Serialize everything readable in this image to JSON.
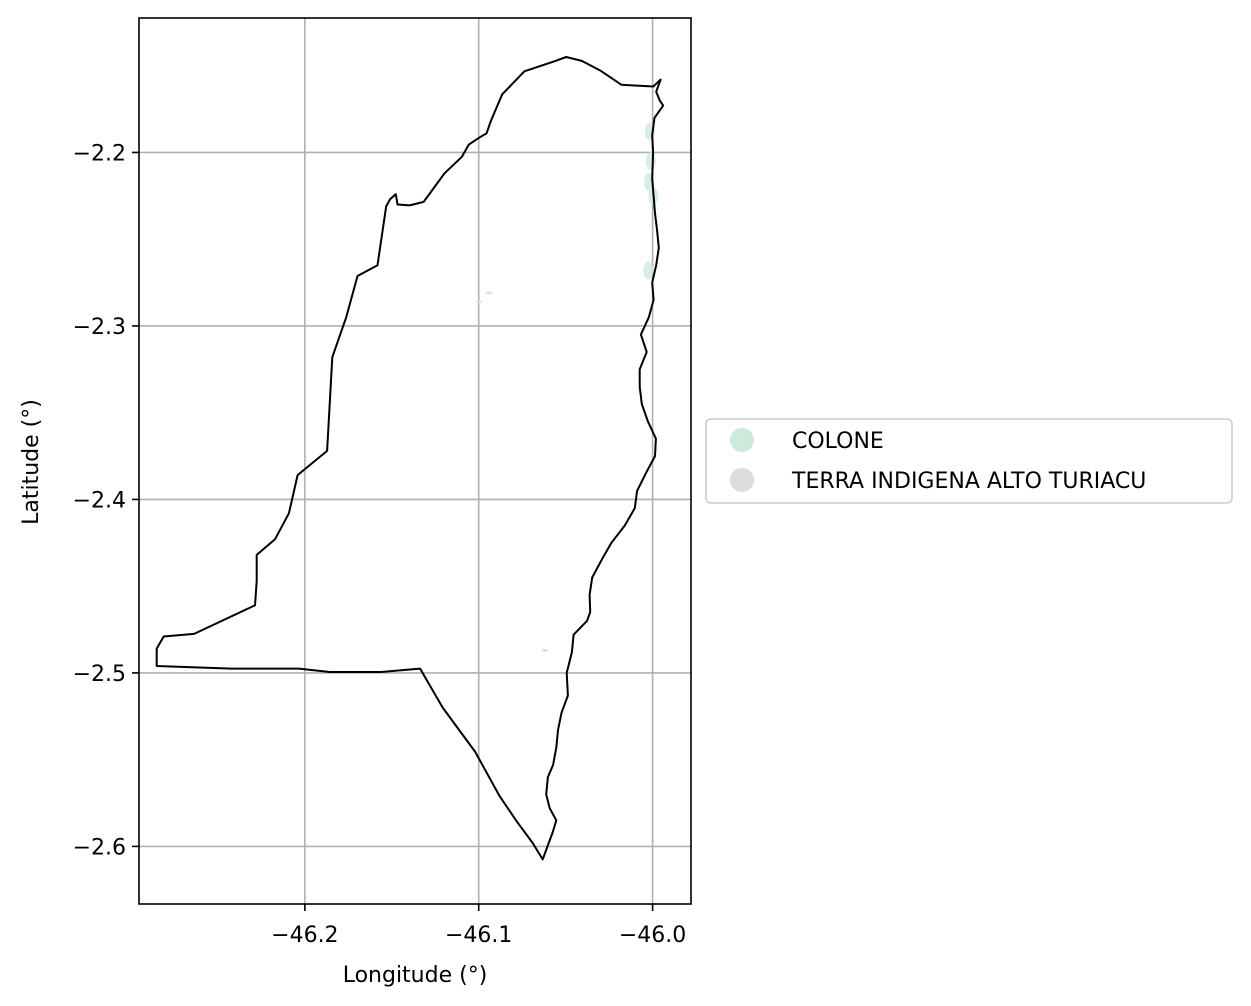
{
  "chart_data": {
    "type": "map",
    "xlabel": "Longitude (°)",
    "ylabel": "Latitude (°)",
    "xlim": [
      -46.2954,
      -45.9779
    ],
    "ylim": [
      -2.6332,
      -2.1225
    ],
    "xticks": [
      {
        "value": -46.2,
        "label": "−46.2"
      },
      {
        "value": -46.1,
        "label": "−46.1"
      },
      {
        "value": -46.0,
        "label": "−46.0"
      }
    ],
    "yticks": [
      {
        "value": -2.2,
        "label": "−2.2"
      },
      {
        "value": -2.3,
        "label": "−2.3"
      },
      {
        "value": -2.4,
        "label": "−2.4"
      },
      {
        "value": -2.5,
        "label": "−2.5"
      },
      {
        "value": -2.6,
        "label": "−2.6"
      }
    ],
    "grid": true,
    "legend": {
      "placement": "right",
      "entries": [
        {
          "label": "COLONE",
          "color": "#cfeadb"
        },
        {
          "label": "TERRA INDIGENA ALTO TURIACU",
          "color": "#dcdcdc"
        }
      ]
    },
    "boundary": {
      "stroke": "#000000",
      "coords": [
        [
          -46.0632,
          -2.6075
        ],
        [
          -46.0575,
          -2.592
        ],
        [
          -46.0554,
          -2.585
        ],
        [
          -46.0592,
          -2.578
        ],
        [
          -46.0612,
          -2.57
        ],
        [
          -46.0602,
          -2.56
        ],
        [
          -46.0572,
          -2.553
        ],
        [
          -46.0554,
          -2.543
        ],
        [
          -46.0544,
          -2.533
        ],
        [
          -46.0524,
          -2.523
        ],
        [
          -46.0487,
          -2.513
        ],
        [
          -46.0494,
          -2.5
        ],
        [
          -46.0464,
          -2.488
        ],
        [
          -46.0454,
          -2.478
        ],
        [
          -46.0377,
          -2.47
        ],
        [
          -46.0359,
          -2.465
        ],
        [
          -46.0362,
          -2.455
        ],
        [
          -46.0347,
          -2.445
        ],
        [
          -46.0294,
          -2.435
        ],
        [
          -46.0237,
          -2.425
        ],
        [
          -46.016,
          -2.415
        ],
        [
          -46.0102,
          -2.405
        ],
        [
          -46.0089,
          -2.395
        ],
        [
          -46.0039,
          -2.385
        ],
        [
          -45.9986,
          -2.375
        ],
        [
          -45.9981,
          -2.365
        ],
        [
          -46.0027,
          -2.355
        ],
        [
          -46.0062,
          -2.345
        ],
        [
          -46.0074,
          -2.335
        ],
        [
          -46.0074,
          -2.325
        ],
        [
          -46.0034,
          -2.315
        ],
        [
          -46.0067,
          -2.305
        ],
        [
          -46.0022,
          -2.295
        ],
        [
          -45.9994,
          -2.285
        ],
        [
          -46.0002,
          -2.275
        ],
        [
          -45.9979,
          -2.265
        ],
        [
          -45.9964,
          -2.255
        ],
        [
          -45.9974,
          -2.245
        ],
        [
          -45.9986,
          -2.235
        ],
        [
          -45.9994,
          -2.225
        ],
        [
          -46.0002,
          -2.215
        ],
        [
          -45.9997,
          -2.2
        ],
        [
          -46.0002,
          -2.19
        ],
        [
          -45.9989,
          -2.18
        ],
        [
          -45.9939,
          -2.173
        ],
        [
          -45.9959,
          -2.17
        ],
        [
          -45.9979,
          -2.165
        ],
        [
          -45.9954,
          -2.158
        ],
        [
          -45.9996,
          -2.162
        ],
        [
          -46.0179,
          -2.161
        ],
        [
          -46.0297,
          -2.153
        ],
        [
          -46.0407,
          -2.1472
        ],
        [
          -46.0497,
          -2.145
        ],
        [
          -46.0567,
          -2.1475
        ],
        [
          -46.0737,
          -2.1532
        ],
        [
          -46.0865,
          -2.1665
        ],
        [
          -46.093,
          -2.1818
        ],
        [
          -46.0955,
          -2.189
        ],
        [
          -46.0997,
          -2.1915
        ],
        [
          -46.1057,
          -2.1955
        ],
        [
          -46.1097,
          -2.2025
        ],
        [
          -46.1197,
          -2.212
        ],
        [
          -46.1277,
          -2.223
        ],
        [
          -46.1317,
          -2.2285
        ],
        [
          -46.1397,
          -2.2305
        ],
        [
          -46.1467,
          -2.23
        ],
        [
          -46.1477,
          -2.224
        ],
        [
          -46.151,
          -2.227
        ],
        [
          -46.1532,
          -2.231
        ],
        [
          -46.1582,
          -2.265
        ],
        [
          -46.1697,
          -2.2712
        ],
        [
          -46.1762,
          -2.295
        ],
        [
          -46.1842,
          -2.318
        ],
        [
          -46.1872,
          -2.372
        ],
        [
          -46.2042,
          -2.386
        ],
        [
          -46.2092,
          -2.408
        ],
        [
          -46.2172,
          -2.423
        ],
        [
          -46.2277,
          -2.432
        ],
        [
          -46.2277,
          -2.447
        ],
        [
          -46.2287,
          -2.461
        ],
        [
          -46.2637,
          -2.4775
        ],
        [
          -46.2812,
          -2.479
        ],
        [
          -46.2852,
          -2.486
        ],
        [
          -46.2852,
          -2.496
        ],
        [
          -46.2422,
          -2.4975
        ],
        [
          -46.2035,
          -2.4975
        ],
        [
          -46.1857,
          -2.4995
        ],
        [
          -46.1565,
          -2.4995
        ],
        [
          -46.1337,
          -2.4975
        ],
        [
          -46.1207,
          -2.52
        ],
        [
          -46.102,
          -2.5455
        ],
        [
          -46.088,
          -2.571
        ],
        [
          -46.0782,
          -2.5855
        ],
        [
          -46.069,
          -2.598
        ],
        [
          -46.0632,
          -2.6075
        ]
      ]
    },
    "colone_patches": [
      [
        -46.0015,
        -2.188
      ],
      [
        -46.001,
        -2.205
      ],
      [
        -46.002,
        -2.217
      ],
      [
        -45.9995,
        -2.225
      ],
      [
        -46.0025,
        -2.268
      ]
    ],
    "terra_patches": [
      [
        -46.094,
        -2.281
      ],
      [
        -46.0998,
        -2.286
      ],
      [
        -46.062,
        -2.487
      ]
    ]
  }
}
